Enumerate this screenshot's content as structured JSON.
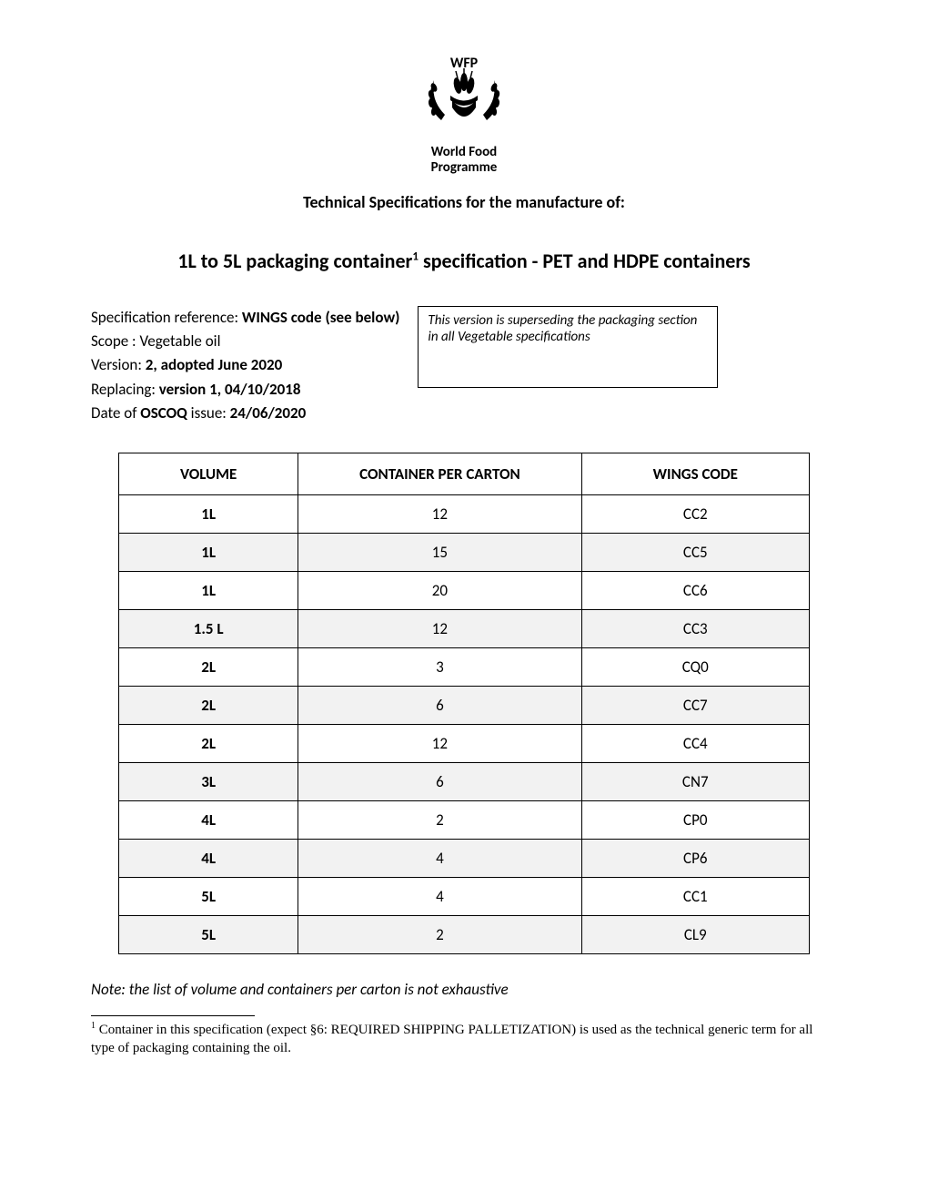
{
  "logo": {
    "top_text": "WFP",
    "org_line1": "World Food",
    "org_line2": "Programme"
  },
  "header": {
    "tech_spec_line": "Technical Specifications for the manufacture of:",
    "title_prefix": "1L to 5L packaging container",
    "title_sup": "1",
    "title_suffix": " specification - PET and HDPE containers"
  },
  "meta": {
    "spec_ref_label": "Specification reference: ",
    "spec_ref_value": "WINGS code (see below)",
    "scope_label": "Scope : ",
    "scope_value": "Vegetable oil",
    "version_label": "Version: ",
    "version_value": "2, adopted June 2020",
    "replacing_label": "Replacing: ",
    "replacing_value": "version 1, 04/10/2018",
    "issue_prefix": "Date of ",
    "issue_bold": "OSCOQ",
    "issue_mid": " issue: ",
    "issue_value": "24/06/2020"
  },
  "notebox": {
    "text": "This version is superseding the packaging section in all Vegetable specifications"
  },
  "table": {
    "headers": [
      "VOLUME",
      "CONTAINER PER CARTON",
      "WINGS CODE"
    ],
    "col_widths": [
      "26%",
      "41%",
      "33%"
    ],
    "rows": [
      {
        "volume": "1L",
        "cpc": "12",
        "code": "CC2",
        "shaded": false
      },
      {
        "volume": "1L",
        "cpc": "15",
        "code": "CC5",
        "shaded": true
      },
      {
        "volume": "1L",
        "cpc": "20",
        "code": "CC6",
        "shaded": false
      },
      {
        "volume": "1.5 L",
        "cpc": "12",
        "code": "CC3",
        "shaded": true
      },
      {
        "volume": "2L",
        "cpc": "3",
        "code": "CQ0",
        "shaded": false
      },
      {
        "volume": "2L",
        "cpc": "6",
        "code": "CC7",
        "shaded": true
      },
      {
        "volume": "2L",
        "cpc": "12",
        "code": "CC4",
        "shaded": false
      },
      {
        "volume": "3L",
        "cpc": "6",
        "code": "CN7",
        "shaded": true
      },
      {
        "volume": "4L",
        "cpc": "2",
        "code": "CP0",
        "shaded": false
      },
      {
        "volume": "4L",
        "cpc": "4",
        "code": "CP6",
        "shaded": true
      },
      {
        "volume": "5L",
        "cpc": "4",
        "code": "CC1",
        "shaded": false
      },
      {
        "volume": "5L",
        "cpc": "2",
        "code": "CL9",
        "shaded": true
      }
    ]
  },
  "note_line": "Note: the list of volume and containers per carton is not exhaustive",
  "footnote": {
    "num": "1",
    "text": " Container in this specification (expect §6: REQUIRED SHIPPING PALLETIZATION) is used as the technical generic term for all type of packaging containing the oil."
  },
  "colors": {
    "shade_bg": "#f2f2f2",
    "border": "#000000",
    "text": "#000000",
    "page_bg": "#ffffff"
  }
}
